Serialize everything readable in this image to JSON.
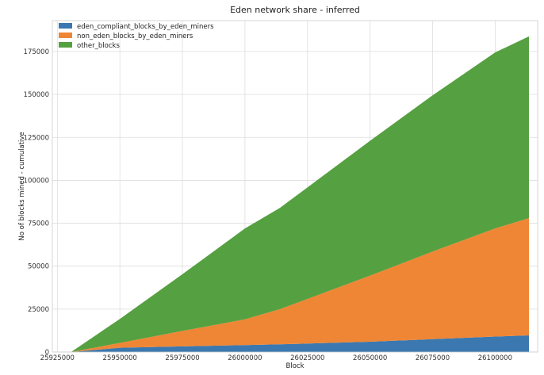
{
  "chart_data": {
    "type": "area",
    "stacked": true,
    "title": "Eden network share - inferred",
    "xlabel": "Block",
    "ylabel": "No of blocks mined - cumulative",
    "xlim": [
      25923000,
      26117000
    ],
    "ylim": [
      0,
      193000
    ],
    "xticks": [
      25925000,
      25950000,
      25975000,
      26000000,
      26025000,
      26050000,
      26075000,
      26100000
    ],
    "yticks": [
      0,
      25000,
      50000,
      75000,
      100000,
      125000,
      150000,
      175000
    ],
    "grid": true,
    "legend_position": "top-left",
    "x": [
      25930500,
      25950000,
      25975000,
      26000000,
      26014000,
      26050000,
      26075000,
      26100000,
      26113500
    ],
    "series": [
      {
        "name": "eden_compliant_blocks_by_eden_miners",
        "color": "#3b78b0",
        "values": [
          0,
          2500,
          3300,
          4000,
          4500,
          6000,
          7500,
          9000,
          9700
        ]
      },
      {
        "name": "non_eden_blocks_by_eden_miners",
        "color": "#ee8635",
        "values": [
          0,
          2800,
          9000,
          15000,
          20500,
          38500,
          51000,
          63000,
          68300
        ]
      },
      {
        "name": "other_blocks",
        "color": "#55a040",
        "values": [
          0,
          14000,
          33000,
          53000,
          59000,
          78500,
          91000,
          102500,
          105800
        ]
      }
    ]
  }
}
